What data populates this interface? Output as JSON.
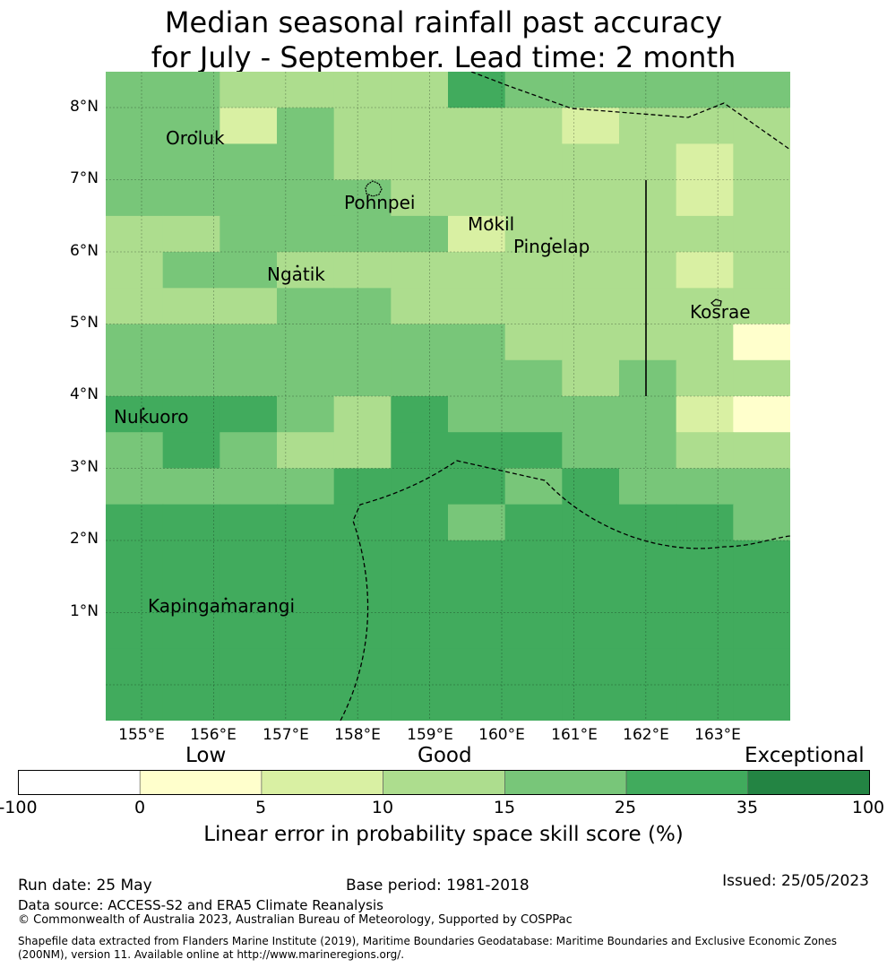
{
  "title_line1": "Median seasonal rainfall past accuracy",
  "title_line2": "for July - September. Lead time: 2 month",
  "map": {
    "lat_labels": [
      "8°N",
      "7°N",
      "6°N",
      "5°N",
      "4°N",
      "3°N",
      "2°N",
      "1°N"
    ],
    "lon_labels": [
      "155°E",
      "156°E",
      "157°E",
      "158°E",
      "159°E",
      "160°E",
      "161°E",
      "162°E",
      "163°E"
    ],
    "places": [
      {
        "name": "Oroluk"
      },
      {
        "name": "Pohnpei"
      },
      {
        "name": "Mokil"
      },
      {
        "name": "Pingelap"
      },
      {
        "name": "Ngatik"
      },
      {
        "name": "Kosrae"
      },
      {
        "name": "Nukuoro"
      },
      {
        "name": "Kapingamarangi"
      }
    ],
    "grid_classes": [
      [
        4,
        4,
        3,
        3,
        3,
        3,
        5,
        4,
        4,
        4,
        4,
        4
      ],
      [
        4,
        4,
        2,
        4,
        3,
        3,
        3,
        3,
        2,
        3,
        3,
        3
      ],
      [
        4,
        4,
        4,
        4,
        3,
        3,
        3,
        3,
        3,
        3,
        2,
        3
      ],
      [
        4,
        4,
        4,
        4,
        4,
        3,
        3,
        3,
        3,
        3,
        2,
        3
      ],
      [
        3,
        3,
        4,
        4,
        4,
        4,
        2,
        3,
        3,
        3,
        3,
        3
      ],
      [
        3,
        4,
        4,
        3,
        3,
        3,
        3,
        3,
        3,
        3,
        2,
        3
      ],
      [
        3,
        3,
        3,
        4,
        4,
        3,
        3,
        3,
        3,
        3,
        3,
        3
      ],
      [
        4,
        4,
        4,
        4,
        4,
        4,
        4,
        3,
        3,
        3,
        3,
        1
      ],
      [
        4,
        4,
        4,
        4,
        4,
        4,
        4,
        4,
        3,
        4,
        3,
        3
      ],
      [
        5,
        5,
        5,
        4,
        3,
        5,
        4,
        4,
        4,
        4,
        2,
        1
      ],
      [
        4,
        5,
        4,
        3,
        3,
        5,
        5,
        5,
        4,
        4,
        3,
        3
      ],
      [
        4,
        4,
        4,
        4,
        5,
        5,
        5,
        4,
        5,
        4,
        4,
        4
      ],
      [
        5,
        5,
        5,
        5,
        5,
        5,
        4,
        5,
        5,
        5,
        5,
        4
      ],
      [
        5,
        5,
        5,
        5,
        5,
        5,
        5,
        5,
        5,
        5,
        5,
        5
      ],
      [
        5,
        5,
        5,
        5,
        5,
        5,
        5,
        5,
        5,
        5,
        5,
        5
      ],
      [
        5,
        5,
        5,
        5,
        5,
        5,
        5,
        5,
        5,
        5,
        5,
        5
      ],
      [
        5,
        5,
        5,
        5,
        5,
        5,
        5,
        5,
        5,
        5,
        5,
        5
      ],
      [
        5,
        5,
        5,
        5,
        5,
        5,
        5,
        5,
        5,
        5,
        5,
        5
      ]
    ]
  },
  "legend": {
    "categories": [
      "Low",
      "Good",
      "Exceptional"
    ],
    "ticks": [
      "-100",
      "0",
      "5",
      "10",
      "15",
      "25",
      "35",
      "100"
    ],
    "colors": [
      "#ffffff",
      "#ffffcc",
      "#d9f0a3",
      "#addd8e",
      "#78c679",
      "#41ab5d",
      "#238443"
    ],
    "label": "Linear error in probability space skill score (%)"
  },
  "footer": {
    "run_date": "Run date: 25 May",
    "base_period": "Base period: 1981-2018",
    "issued": "Issued: 25/05/2023",
    "data_source": "Data source: ACCESS-S2 and ERA5 Climate Reanalysis",
    "copyright": "© Commonwealth of Australia 2023, Australian Bureau of Meteorology, Supported by COSPPac",
    "shapefile_line1": "Shapefile data extracted from Flanders Marine Institute (2019), Maritime Boundaries Geodatabase: Maritime Boundaries and Exclusive Economic Zones",
    "shapefile_line2": "(200NM), version 11. Available online at http://www.marineregions.org/."
  }
}
